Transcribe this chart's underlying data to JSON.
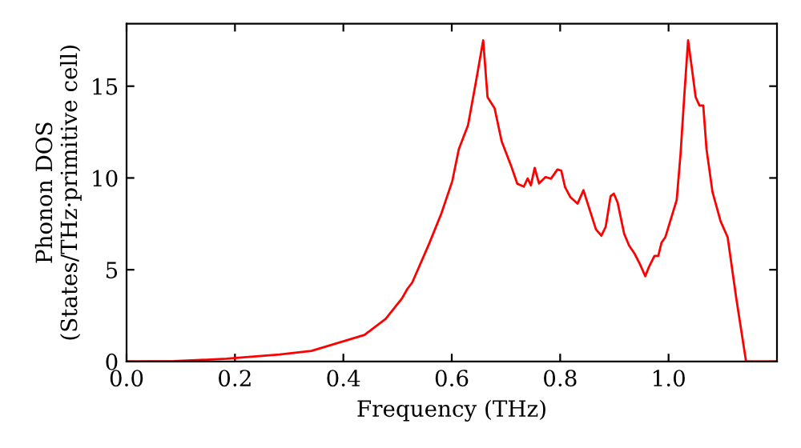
{
  "chart_data": {
    "type": "line",
    "xlabel": "Frequency (THz)",
    "ylabel": "Phonon DOS\n(States/THz·primitive cell)",
    "xlim": [
      0,
      1.2
    ],
    "ylim": [
      0,
      18.4
    ],
    "xticks": [
      {
        "value": 0,
        "label": "0.0"
      },
      {
        "value": 0.2,
        "label": "0.2"
      },
      {
        "value": 0.4,
        "label": "0.4"
      },
      {
        "value": 0.6,
        "label": "0.6"
      },
      {
        "value": 0.8,
        "label": "0.8"
      },
      {
        "value": 1.0,
        "label": "1.0"
      }
    ],
    "yticks": [
      0,
      5,
      10,
      15
    ],
    "grid": false,
    "marker": "none",
    "line_style": "solid",
    "series": [
      {
        "color": "#ff0000",
        "x": [
          0,
          0.088,
          0.184,
          0.282,
          0.341,
          0.4,
          0.439,
          0.478,
          0.508,
          0.518,
          0.527,
          0.557,
          0.562,
          0.581,
          0.601,
          0.613,
          0.63,
          0.645,
          0.658,
          0.666,
          0.679,
          0.692,
          0.709,
          0.721,
          0.733,
          0.74,
          0.746,
          0.753,
          0.761,
          0.773,
          0.783,
          0.795,
          0.802,
          0.809,
          0.819,
          0.832,
          0.843,
          0.853,
          0.866,
          0.876,
          0.884,
          0.893,
          0.899,
          0.906,
          0.918,
          0.927,
          0.937,
          0.947,
          0.957,
          0.964,
          0.974,
          0.981,
          0.987,
          0.994,
          1.003,
          1.015,
          1.022,
          1.029,
          1.036,
          1.042,
          1.05,
          1.057,
          1.064,
          1.07,
          1.081,
          1.096,
          1.109,
          1.125,
          1.143,
          1.2
        ],
        "values": [
          0,
          0.02,
          0.15,
          0.38,
          0.58,
          1.1,
          1.45,
          2.32,
          3.43,
          3.95,
          4.3,
          6.33,
          6.69,
          8.08,
          9.83,
          11.57,
          12.87,
          15.3,
          17.5,
          14.4,
          13.8,
          12.0,
          10.7,
          9.68,
          9.53,
          9.97,
          9.6,
          10.55,
          9.7,
          10.05,
          9.96,
          10.46,
          10.4,
          9.5,
          8.95,
          8.6,
          9.33,
          8.4,
          7.2,
          6.85,
          7.34,
          9.0,
          9.15,
          8.66,
          6.97,
          6.33,
          5.89,
          5.32,
          4.65,
          5.17,
          5.75,
          5.75,
          6.48,
          6.77,
          7.64,
          8.8,
          11.27,
          14.47,
          17.5,
          16.2,
          14.4,
          13.95,
          13.95,
          11.57,
          9.24,
          7.64,
          6.77,
          3.43,
          0,
          0
        ]
      }
    ]
  }
}
